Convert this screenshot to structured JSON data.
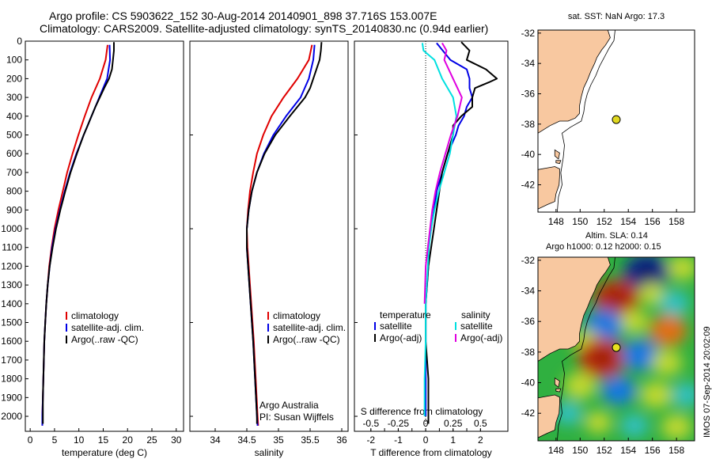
{
  "header": {
    "line1": "Argo profile: CS 5903622_152 30-Aug-2014 20140901_898 37.716S 153.007E",
    "line2": "Climatology: CARS2009. Satellite-adjusted climatology: synTS_20140830.nc (0.94d earlier)"
  },
  "colors": {
    "climatology": "#e00000",
    "satellite": "#0000e6",
    "argo": "#000000",
    "s_sat": "#00e0e0",
    "s_argo": "#e000e0",
    "land": "#f8c8a0"
  },
  "chart_data": [
    {
      "id": "temperature",
      "type": "line",
      "xlabel": "temperature (deg C)",
      "ylabel": "",
      "xlim": [
        -1,
        31.5
      ],
      "ylim": [
        0,
        2080
      ],
      "y_inverted": true,
      "xticks": [
        0,
        5,
        10,
        15,
        20,
        25,
        30
      ],
      "yticks": [
        0,
        100,
        200,
        300,
        400,
        500,
        600,
        700,
        800,
        900,
        1000,
        1100,
        1200,
        1300,
        1400,
        1500,
        1600,
        1700,
        1800,
        1900,
        2000
      ],
      "legend": [
        "climatology",
        "satellite-adj. clim.",
        "Argo(..raw -QC)"
      ],
      "series": [
        {
          "name": "climatology",
          "color": "climatology",
          "depth": [
            20,
            100,
            200,
            300,
            400,
            500,
            600,
            700,
            800,
            900,
            1000,
            1100,
            1200,
            1300,
            1400,
            1500,
            1600,
            1700,
            1800,
            1900,
            2000,
            2050
          ],
          "values": [
            15.9,
            15.5,
            14.3,
            12.6,
            11.2,
            9.9,
            8.7,
            7.6,
            6.7,
            5.8,
            5.0,
            4.4,
            3.9,
            3.6,
            3.3,
            3.1,
            2.9,
            2.8,
            2.7,
            2.6,
            2.5,
            2.5
          ]
        },
        {
          "name": "satellite-adj. clim.",
          "color": "satellite",
          "depth": [
            20,
            100,
            200,
            300,
            400,
            500,
            600,
            700,
            800,
            900,
            1000,
            1100,
            1200,
            1300,
            1400,
            1500,
            1600,
            1700,
            1800,
            1900,
            2000,
            2050
          ],
          "values": [
            16.3,
            16.4,
            15.8,
            14.2,
            12.6,
            11.0,
            9.5,
            8.2,
            7.1,
            6.1,
            5.2,
            4.5,
            4.0,
            3.6,
            3.3,
            3.1,
            2.9,
            2.8,
            2.7,
            2.6,
            2.5,
            2.5
          ]
        },
        {
          "name": "Argo(..raw -QC)",
          "color": "argo",
          "depth": [
            5,
            50,
            100,
            150,
            200,
            250,
            300,
            350,
            400,
            450,
            500,
            600,
            700,
            800,
            900,
            1000,
            1100,
            1200,
            1300,
            1400,
            1500,
            1600,
            1700,
            1800,
            1900,
            2000,
            2040
          ],
          "values": [
            17.2,
            17.2,
            17.0,
            16.8,
            16.2,
            15.2,
            14.3,
            13.4,
            12.6,
            11.8,
            11.0,
            9.6,
            8.3,
            7.2,
            6.2,
            5.3,
            4.6,
            4.0,
            3.6,
            3.3,
            3.1,
            2.9,
            2.8,
            2.7,
            2.6,
            2.6,
            2.6
          ]
        }
      ]
    },
    {
      "id": "salinity",
      "type": "line",
      "xlabel": "salinity",
      "ylabel": "",
      "xlim": [
        33.6,
        36.1
      ],
      "ylim": [
        0,
        2080
      ],
      "y_inverted": true,
      "xticks": [
        34,
        34.5,
        35,
        35.5,
        36
      ],
      "legend": [
        "climatology",
        "satellite-adj. clim.",
        "Argo(..raw -QC)"
      ],
      "annotation": [
        "Argo Australia",
        "PI: Susan Wijffels"
      ],
      "series": [
        {
          "name": "climatology",
          "color": "climatology",
          "depth": [
            20,
            100,
            200,
            300,
            400,
            500,
            600,
            700,
            800,
            900,
            1000,
            1100,
            1200,
            1400,
            1600,
            1800,
            2000,
            2050
          ],
          "values": [
            35.53,
            35.48,
            35.3,
            35.08,
            34.89,
            34.76,
            34.66,
            34.6,
            34.55,
            34.52,
            34.5,
            34.51,
            34.53,
            34.57,
            34.61,
            34.64,
            34.67,
            34.68
          ]
        },
        {
          "name": "satellite-adj. clim.",
          "color": "satellite",
          "depth": [
            20,
            100,
            200,
            300,
            400,
            500,
            600,
            700,
            800,
            900,
            1000,
            1100,
            1200,
            1400,
            1600,
            1800,
            2000,
            2050
          ],
          "values": [
            35.57,
            35.55,
            35.48,
            35.35,
            35.12,
            34.92,
            34.77,
            34.66,
            34.58,
            34.53,
            34.5,
            34.5,
            34.52,
            34.56,
            34.6,
            34.63,
            34.66,
            34.67
          ]
        },
        {
          "name": "Argo(..raw -QC)",
          "color": "argo",
          "depth": [
            5,
            50,
            100,
            150,
            200,
            250,
            300,
            400,
            500,
            600,
            700,
            800,
            900,
            1000,
            1100,
            1200,
            1400,
            1600,
            1800,
            2000,
            2040
          ],
          "values": [
            35.68,
            35.67,
            35.65,
            35.6,
            35.55,
            35.5,
            35.42,
            35.18,
            34.95,
            34.78,
            34.66,
            34.58,
            34.53,
            34.5,
            34.5,
            34.52,
            34.56,
            34.6,
            34.63,
            34.66,
            34.66
          ]
        }
      ]
    },
    {
      "id": "difference",
      "type": "line",
      "xlabel": "T difference from climatology",
      "x2label": "S difference from climatology",
      "xlim": [
        -2.6,
        3.0
      ],
      "ylim": [
        0,
        2080
      ],
      "y_inverted": true,
      "xticks": [
        -2,
        -1.5,
        -1,
        -0.5,
        0,
        0.5,
        1,
        1.5,
        2
      ],
      "xticklabels": [
        "-2",
        "",
        "-1",
        "",
        "0",
        "",
        "1",
        "",
        "2"
      ],
      "x2ticks": [
        -0.5,
        -0.25,
        0,
        0.25,
        0.5
      ],
      "x2ticklabels": [
        "-0.5",
        "-0.25",
        "0",
        "0.25",
        "0.5"
      ],
      "x2scale": 4,
      "legend_groups": [
        {
          "title": "temperature",
          "items": [
            "satellite",
            "Argo(-adj)"
          ]
        },
        {
          "title": "salinity",
          "items": [
            "satellite",
            "Argo(-adj)"
          ]
        }
      ],
      "series": [
        {
          "name": "T satellite",
          "color": "satellite",
          "depth": [
            10,
            100,
            150,
            200,
            250,
            300,
            350,
            400,
            450,
            500,
            600,
            700,
            800,
            900,
            1000,
            1100,
            1200,
            1400,
            1600,
            1800,
            2000
          ],
          "values": [
            0.4,
            0.9,
            1.5,
            1.6,
            1.6,
            1.7,
            1.5,
            1.4,
            1.2,
            1.1,
            0.8,
            0.6,
            0.4,
            0.3,
            0.2,
            0.1,
            0.1,
            0.0,
            0.0,
            0.0,
            0.0
          ]
        },
        {
          "name": "T Argo(-adj)",
          "color": "argo",
          "depth": [
            5,
            50,
            100,
            150,
            200,
            220,
            250,
            300,
            350,
            400,
            450,
            500,
            600,
            700,
            800,
            900,
            1000,
            1100,
            1200,
            1400,
            1600,
            1800,
            2000,
            2040
          ],
          "values": [
            1.3,
            1.6,
            1.5,
            2.2,
            2.6,
            2.3,
            1.8,
            1.7,
            1.7,
            1.3,
            1.0,
            1.0,
            0.8,
            0.6,
            0.5,
            0.4,
            0.3,
            0.2,
            0.1,
            0.0,
            0.0,
            0.1,
            0.1,
            0.1
          ]
        },
        {
          "name": "S satellite",
          "color": "s_sat",
          "depth": [
            10,
            50,
            100,
            200,
            300,
            400,
            500,
            600,
            700,
            800,
            900,
            1000,
            1100,
            1200,
            1400,
            1600,
            1800,
            2000
          ],
          "values": [
            -0.03,
            -0.02,
            0.08,
            0.15,
            0.25,
            0.28,
            0.25,
            0.22,
            0.17,
            0.12,
            0.08,
            0.05,
            0.03,
            0.02,
            0.0,
            0.0,
            -0.01,
            -0.01
          ]
        },
        {
          "name": "S Argo(-adj)",
          "color": "s_argo",
          "depth": [
            10,
            50,
            100,
            200,
            300,
            400,
            500,
            600,
            700,
            800,
            900,
            1000,
            1100,
            1200,
            1400
          ],
          "values": [
            0.15,
            0.19,
            0.17,
            0.25,
            0.33,
            0.29,
            0.23,
            0.18,
            0.13,
            0.09,
            0.06,
            0.04,
            0.02,
            0.0,
            -0.01
          ]
        }
      ]
    },
    {
      "id": "sst_map",
      "type": "scatter",
      "title": "sat. SST: NaN Argo: 17.3",
      "xlim": [
        146.5,
        159.5
      ],
      "ylim": [
        -43.8,
        -31.8
      ],
      "xticks": [
        148,
        150,
        152,
        154,
        156,
        158
      ],
      "yticks": [
        -32,
        -34,
        -36,
        -38,
        -40,
        -42
      ],
      "points": [
        {
          "x": 153.0,
          "y": -37.7
        }
      ]
    },
    {
      "id": "sla_map",
      "type": "heatmap",
      "title1": "Altim. SLA: 0.14",
      "title2": "Argo h1000: 0.12 h2000: 0.15",
      "xlim": [
        146.5,
        159.5
      ],
      "ylim": [
        -43.8,
        -31.8
      ],
      "xticks": [
        148,
        150,
        152,
        154,
        156,
        158
      ],
      "yticks": [
        -32,
        -34,
        -36,
        -38,
        -40,
        -42
      ],
      "points": [
        {
          "x": 153.0,
          "y": -37.7
        }
      ],
      "anomalies": [
        {
          "x": 155.5,
          "y": -32.8,
          "a": -1.0
        },
        {
          "x": 158.5,
          "y": -32.5,
          "a": 0.4
        },
        {
          "x": 153.0,
          "y": -34.5,
          "a": 1.0
        },
        {
          "x": 156.0,
          "y": -34.2,
          "a": 0.3
        },
        {
          "x": 152.0,
          "y": -36.3,
          "a": -0.8
        },
        {
          "x": 154.5,
          "y": -36.0,
          "a": 0.35
        },
        {
          "x": 157.3,
          "y": -36.6,
          "a": 0.7
        },
        {
          "x": 150.5,
          "y": -37.3,
          "a": 0.35
        },
        {
          "x": 151.8,
          "y": -38.4,
          "a": 1.1
        },
        {
          "x": 155.0,
          "y": -38.2,
          "a": -0.7
        },
        {
          "x": 157.2,
          "y": -38.7,
          "a": 0.45
        },
        {
          "x": 150.0,
          "y": -40.2,
          "a": 0.5
        },
        {
          "x": 153.2,
          "y": -40.5,
          "a": -0.6
        },
        {
          "x": 156.3,
          "y": -40.8,
          "a": 0.5
        },
        {
          "x": 158.8,
          "y": -40.8,
          "a": -0.4
        },
        {
          "x": 151.5,
          "y": -42.6,
          "a": 0.3
        },
        {
          "x": 154.5,
          "y": -42.8,
          "a": -0.35
        },
        {
          "x": 158.0,
          "y": -42.9,
          "a": 0.45
        },
        {
          "x": 149.0,
          "y": -42.0,
          "a": -0.35
        },
        {
          "x": 157.8,
          "y": -34.8,
          "a": -0.45
        }
      ]
    }
  ],
  "legend_labels": {
    "climatology": "climatology",
    "satellite_adj": "satellite-adj. clim.",
    "argo_raw": "Argo(..raw -QC)",
    "temperature": "temperature",
    "salinity": "salinity",
    "satellite": "satellite",
    "argo_adj": "Argo(-adj)"
  },
  "footer": {
    "timestamp": "IMOS 07-Sep-2014 20:02:09"
  }
}
